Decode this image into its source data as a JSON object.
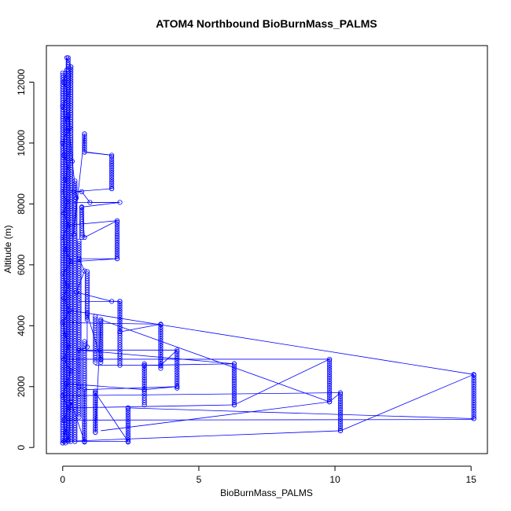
{
  "chart_data": {
    "type": "scatter",
    "title": "ATOM4 Northbound BioBurnMass_PALMS",
    "xlabel": "BioBurnMass_PALMS",
    "ylabel": "Altitude (m)",
    "xlim": [
      -0.6,
      15.6
    ],
    "ylim": [
      -200,
      13200
    ],
    "x_ticks": [
      0,
      5,
      10,
      15
    ],
    "y_ticks": [
      0,
      2000,
      4000,
      6000,
      8000,
      10000,
      12000
    ],
    "grid": false,
    "legend": "none",
    "series": [
      {
        "color": "#0000ff",
        "marker": "open-circle",
        "connect": true,
        "points": [
          [
            0.0,
            150
          ],
          [
            0.1,
            500
          ],
          [
            0.05,
            900
          ],
          [
            0.2,
            1300
          ],
          [
            0.0,
            1700
          ],
          [
            0.15,
            2100
          ],
          [
            0.3,
            2500
          ],
          [
            0.05,
            2900
          ],
          [
            0.2,
            3300
          ],
          [
            0.1,
            3700
          ],
          [
            0.0,
            4100
          ],
          [
            0.25,
            4500
          ],
          [
            0.05,
            4900
          ],
          [
            0.15,
            5300
          ],
          [
            0.0,
            5700
          ],
          [
            0.3,
            6100
          ],
          [
            0.1,
            6500
          ],
          [
            0.0,
            6900
          ],
          [
            0.2,
            7300
          ],
          [
            0.05,
            7700
          ],
          [
            0.15,
            8050
          ],
          [
            0.0,
            8400
          ],
          [
            0.1,
            8800
          ],
          [
            0.2,
            9200
          ],
          [
            0.05,
            9600
          ],
          [
            0.0,
            10000
          ],
          [
            0.15,
            10400
          ],
          [
            0.1,
            10800
          ],
          [
            0.0,
            11200
          ],
          [
            0.2,
            11600
          ],
          [
            0.05,
            12000
          ],
          [
            0.15,
            12400
          ],
          [
            0.15,
            12800
          ],
          [
            0.3,
            12500
          ],
          [
            0.25,
            10500
          ],
          [
            0.2,
            10900
          ],
          [
            0.35,
            9400
          ],
          [
            0.5,
            8200
          ],
          [
            0.4,
            7000
          ],
          [
            0.8,
            10300
          ],
          [
            0.8,
            9700
          ],
          [
            1.8,
            9600
          ],
          [
            1.8,
            8500
          ],
          [
            0.4,
            8400
          ],
          [
            0.7,
            8400
          ],
          [
            1.0,
            8050
          ],
          [
            2.1,
            8050
          ],
          [
            0.7,
            7900
          ],
          [
            0.8,
            6900
          ],
          [
            2.0,
            7450
          ],
          [
            2.0,
            6200
          ],
          [
            0.6,
            6200
          ],
          [
            0.8,
            5800
          ],
          [
            0.5,
            5100
          ],
          [
            1.8,
            4800
          ],
          [
            2.1,
            4800
          ],
          [
            2.1,
            3800
          ],
          [
            3.6,
            4050
          ],
          [
            3.6,
            2700
          ],
          [
            4.2,
            3200
          ],
          [
            4.2,
            2000
          ],
          [
            3.0,
            1900
          ],
          [
            3.0,
            2700
          ],
          [
            6.3,
            2750
          ],
          [
            6.3,
            1400
          ],
          [
            9.8,
            2900
          ],
          [
            9.8,
            1500
          ],
          [
            10.2,
            1800
          ],
          [
            10.2,
            550
          ],
          [
            15.1,
            2400
          ],
          [
            15.1,
            950
          ],
          [
            2.4,
            1300
          ],
          [
            2.4,
            200
          ],
          [
            1.2,
            1800
          ],
          [
            1.2,
            500
          ],
          [
            1.4,
            4200
          ],
          [
            1.4,
            2900
          ],
          [
            0.9,
            4400
          ],
          [
            0.9,
            3300
          ],
          [
            0.6,
            3200
          ],
          [
            0.6,
            2000
          ],
          [
            0.8,
            1900
          ],
          [
            0.8,
            200
          ],
          [
            0.3,
            1500
          ],
          [
            0.2,
            250
          ],
          [
            0.05,
            200
          ]
        ]
      }
    ],
    "segments": [
      [
        [
          0.3,
          4500
        ],
        [
          15.1,
          2400
        ]
      ],
      [
        [
          0.1,
          2900
        ],
        [
          9.8,
          2900
        ]
      ],
      [
        [
          0.05,
          900
        ],
        [
          15.1,
          920
        ]
      ],
      [
        [
          0.2,
          1300
        ],
        [
          6.3,
          1400
        ]
      ],
      [
        [
          0.15,
          2100
        ],
        [
          3.0,
          1900
        ]
      ],
      [
        [
          0.05,
          200
        ],
        [
          10.2,
          550
        ]
      ],
      [
        [
          0.6,
          3200
        ],
        [
          6.3,
          2750
        ]
      ],
      [
        [
          1.4,
          4200
        ],
        [
          9.8,
          1500
        ]
      ],
      [
        [
          0.8,
          1900
        ],
        [
          4.2,
          2000
        ]
      ],
      [
        [
          0.25,
          4100
        ],
        [
          3.6,
          4050
        ]
      ],
      [
        [
          0.0,
          1700
        ],
        [
          10.2,
          1800
        ]
      ],
      [
        [
          1.4,
          550
        ],
        [
          9.8,
          1500
        ]
      ],
      [
        [
          0.05,
          200
        ],
        [
          2.4,
          200
        ]
      ],
      [
        [
          0.3,
          6100
        ],
        [
          2.0,
          6200
        ]
      ],
      [
        [
          0.6,
          4800
        ],
        [
          2.1,
          4800
        ]
      ],
      [
        [
          0.2,
          7300
        ],
        [
          2.0,
          7450
        ]
      ],
      [
        [
          0.9,
          9700
        ],
        [
          1.8,
          9600
        ]
      ],
      [
        [
          0.4,
          8050
        ],
        [
          2.1,
          8050
        ]
      ],
      [
        [
          1.2,
          2700
        ],
        [
          3.6,
          2700
        ]
      ],
      [
        [
          0.5,
          3200
        ],
        [
          4.2,
          3200
        ]
      ]
    ],
    "vertical_clusters": [
      [
        0.8,
        9700,
        10300
      ],
      [
        1.8,
        8500,
        9600
      ],
      [
        0.7,
        6900,
        7900
      ],
      [
        2.0,
        6200,
        7450
      ],
      [
        0.9,
        4200,
        5800
      ],
      [
        2.1,
        2700,
        4800
      ],
      [
        1.4,
        2800,
        4200
      ],
      [
        1.2,
        2800,
        4300
      ],
      [
        3.6,
        2600,
        4050
      ],
      [
        4.2,
        1950,
        3200
      ],
      [
        3.0,
        1400,
        2750
      ],
      [
        6.3,
        1400,
        2750
      ],
      [
        9.8,
        1500,
        2900
      ],
      [
        10.2,
        550,
        1800
      ],
      [
        15.1,
        950,
        2400
      ],
      [
        2.4,
        180,
        1350
      ],
      [
        1.2,
        500,
        1850
      ],
      [
        0.8,
        180,
        3500
      ],
      [
        0.6,
        1000,
        6800
      ],
      [
        0.45,
        200,
        8800
      ],
      [
        0.3,
        200,
        12500
      ],
      [
        0.2,
        200,
        12800
      ],
      [
        0.1,
        150,
        12300
      ],
      [
        0.0,
        150,
        12300
      ]
    ]
  }
}
